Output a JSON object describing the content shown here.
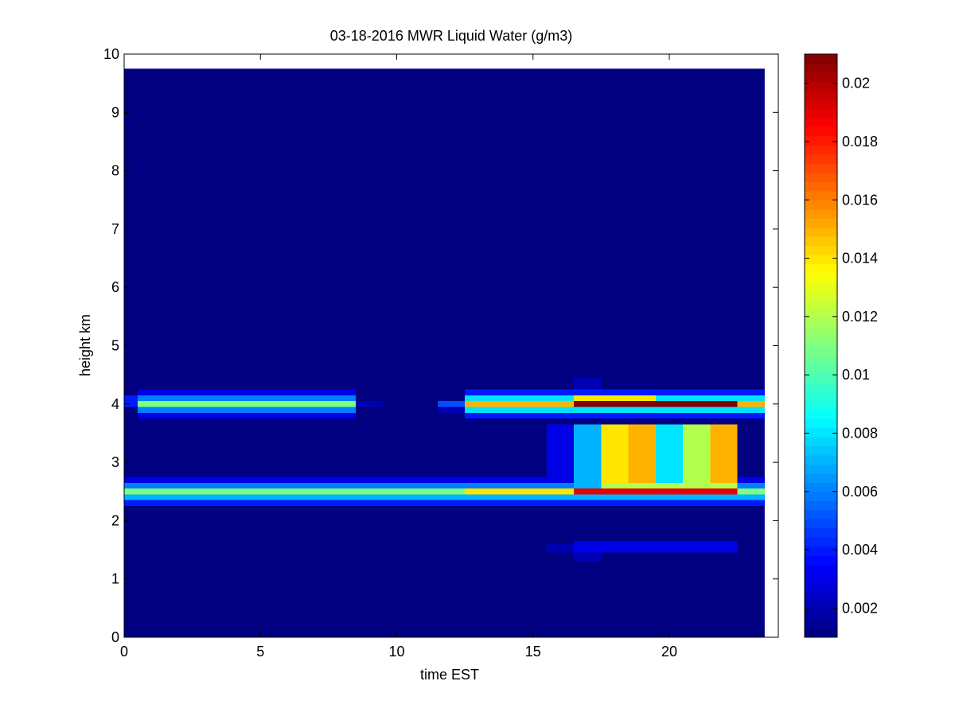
{
  "chart_data": {
    "type": "heatmap",
    "title": "03-18-2016 MWR Liquid Water (g/m3)",
    "xlabel": "time EST",
    "ylabel": "height km",
    "xlim": [
      0,
      24
    ],
    "ylim": [
      0,
      10
    ],
    "x_ticks": [
      0,
      5,
      10,
      15,
      20
    ],
    "y_ticks": [
      0,
      1,
      2,
      3,
      4,
      5,
      6,
      7,
      8,
      9,
      10
    ],
    "colorbar": {
      "colormap": "jet",
      "range": [
        0.001,
        0.021
      ],
      "ticks": [
        0.002,
        0.004,
        0.006,
        0.008,
        0.01,
        0.012,
        0.014,
        0.016,
        0.018,
        0.02
      ],
      "tick_labels": [
        "0.002",
        "0.004",
        "0.006",
        "0.008",
        "0.01",
        "0.012",
        "0.014",
        "0.016",
        "0.018",
        "0.02"
      ]
    },
    "background_value": 0.001,
    "data_extent": {
      "x": [
        0,
        23.5
      ],
      "y": [
        0,
        9.75
      ]
    },
    "cells": [
      {
        "x": [
          0.5,
          8.5
        ],
        "y": [
          4.15,
          4.25
        ],
        "value": 0.003
      },
      {
        "x": [
          0.5,
          8.5
        ],
        "y": [
          4.05,
          4.15
        ],
        "value": 0.006
      },
      {
        "x": [
          0.5,
          8.5
        ],
        "y": [
          3.95,
          4.05
        ],
        "value": 0.011
      },
      {
        "x": [
          0.5,
          8.5
        ],
        "y": [
          3.85,
          3.95
        ],
        "value": 0.006
      },
      {
        "x": [
          0.5,
          8.5
        ],
        "y": [
          3.75,
          3.85
        ],
        "value": 0.003
      },
      {
        "x": [
          0,
          0.5
        ],
        "y": [
          3.95,
          4.15
        ],
        "value": 0.004
      },
      {
        "x": [
          8.5,
          9.5
        ],
        "y": [
          3.95,
          4.05
        ],
        "value": 0.002
      },
      {
        "x": [
          11.5,
          12.5
        ],
        "y": [
          3.95,
          4.05
        ],
        "value": 0.005
      },
      {
        "x": [
          11.5,
          12.5
        ],
        "y": [
          3.85,
          3.95
        ],
        "value": 0.002
      },
      {
        "x": [
          12.5,
          23.5
        ],
        "y": [
          4.15,
          4.25
        ],
        "value": 0.004
      },
      {
        "x": [
          12.5,
          23.5
        ],
        "y": [
          4.05,
          4.15
        ],
        "value": 0.008
      },
      {
        "x": [
          12.5,
          23.5
        ],
        "y": [
          3.95,
          4.05
        ],
        "value": 0.015
      },
      {
        "x": [
          12.5,
          23.5
        ],
        "y": [
          3.85,
          3.95
        ],
        "value": 0.008
      },
      {
        "x": [
          12.5,
          23.5
        ],
        "y": [
          3.75,
          3.85
        ],
        "value": 0.004
      },
      {
        "x": [
          16.5,
          22.5
        ],
        "y": [
          3.95,
          4.05
        ],
        "value": 0.021
      },
      {
        "x": [
          16.5,
          19.5
        ],
        "y": [
          4.05,
          4.15
        ],
        "value": 0.014
      },
      {
        "x": [
          16.5,
          17.5
        ],
        "y": [
          4.25,
          4.45
        ],
        "value": 0.002
      },
      {
        "x": [
          0,
          23.5
        ],
        "y": [
          2.65,
          2.75
        ],
        "value": 0.003
      },
      {
        "x": [
          0,
          23.5
        ],
        "y": [
          2.55,
          2.65
        ],
        "value": 0.006
      },
      {
        "x": [
          0,
          23.5
        ],
        "y": [
          2.45,
          2.55
        ],
        "value": 0.011
      },
      {
        "x": [
          0,
          23.5
        ],
        "y": [
          2.35,
          2.45
        ],
        "value": 0.007
      },
      {
        "x": [
          0,
          23.5
        ],
        "y": [
          2.25,
          2.35
        ],
        "value": 0.004
      },
      {
        "x": [
          12.5,
          16.5
        ],
        "y": [
          2.45,
          2.55
        ],
        "value": 0.014
      },
      {
        "x": [
          16.5,
          22.5
        ],
        "y": [
          2.45,
          2.55
        ],
        "value": 0.019
      },
      {
        "x": [
          16.5,
          22.5
        ],
        "y": [
          2.55,
          2.65
        ],
        "value": 0.012
      },
      {
        "x": [
          16.5,
          17.5
        ],
        "y": [
          2.55,
          3.65
        ],
        "value": 0.007
      },
      {
        "x": [
          17.5,
          18.5
        ],
        "y": [
          2.65,
          3.65
        ],
        "value": 0.014
      },
      {
        "x": [
          18.5,
          19.5
        ],
        "y": [
          2.65,
          3.65
        ],
        "value": 0.015
      },
      {
        "x": [
          19.5,
          20.5
        ],
        "y": [
          2.65,
          3.65
        ],
        "value": 0.008
      },
      {
        "x": [
          20.5,
          21.5
        ],
        "y": [
          2.65,
          3.65
        ],
        "value": 0.012
      },
      {
        "x": [
          21.5,
          22.5
        ],
        "y": [
          2.65,
          3.65
        ],
        "value": 0.015
      },
      {
        "x": [
          15.5,
          16.5
        ],
        "y": [
          2.65,
          3.65
        ],
        "value": 0.003
      },
      {
        "x": [
          16.5,
          22.5
        ],
        "y": [
          1.45,
          1.65
        ],
        "value": 0.003
      },
      {
        "x": [
          15.5,
          16.5
        ],
        "y": [
          1.45,
          1.6
        ],
        "value": 0.002
      },
      {
        "x": [
          16.5,
          17.5
        ],
        "y": [
          1.3,
          1.45
        ],
        "value": 0.002
      }
    ]
  }
}
